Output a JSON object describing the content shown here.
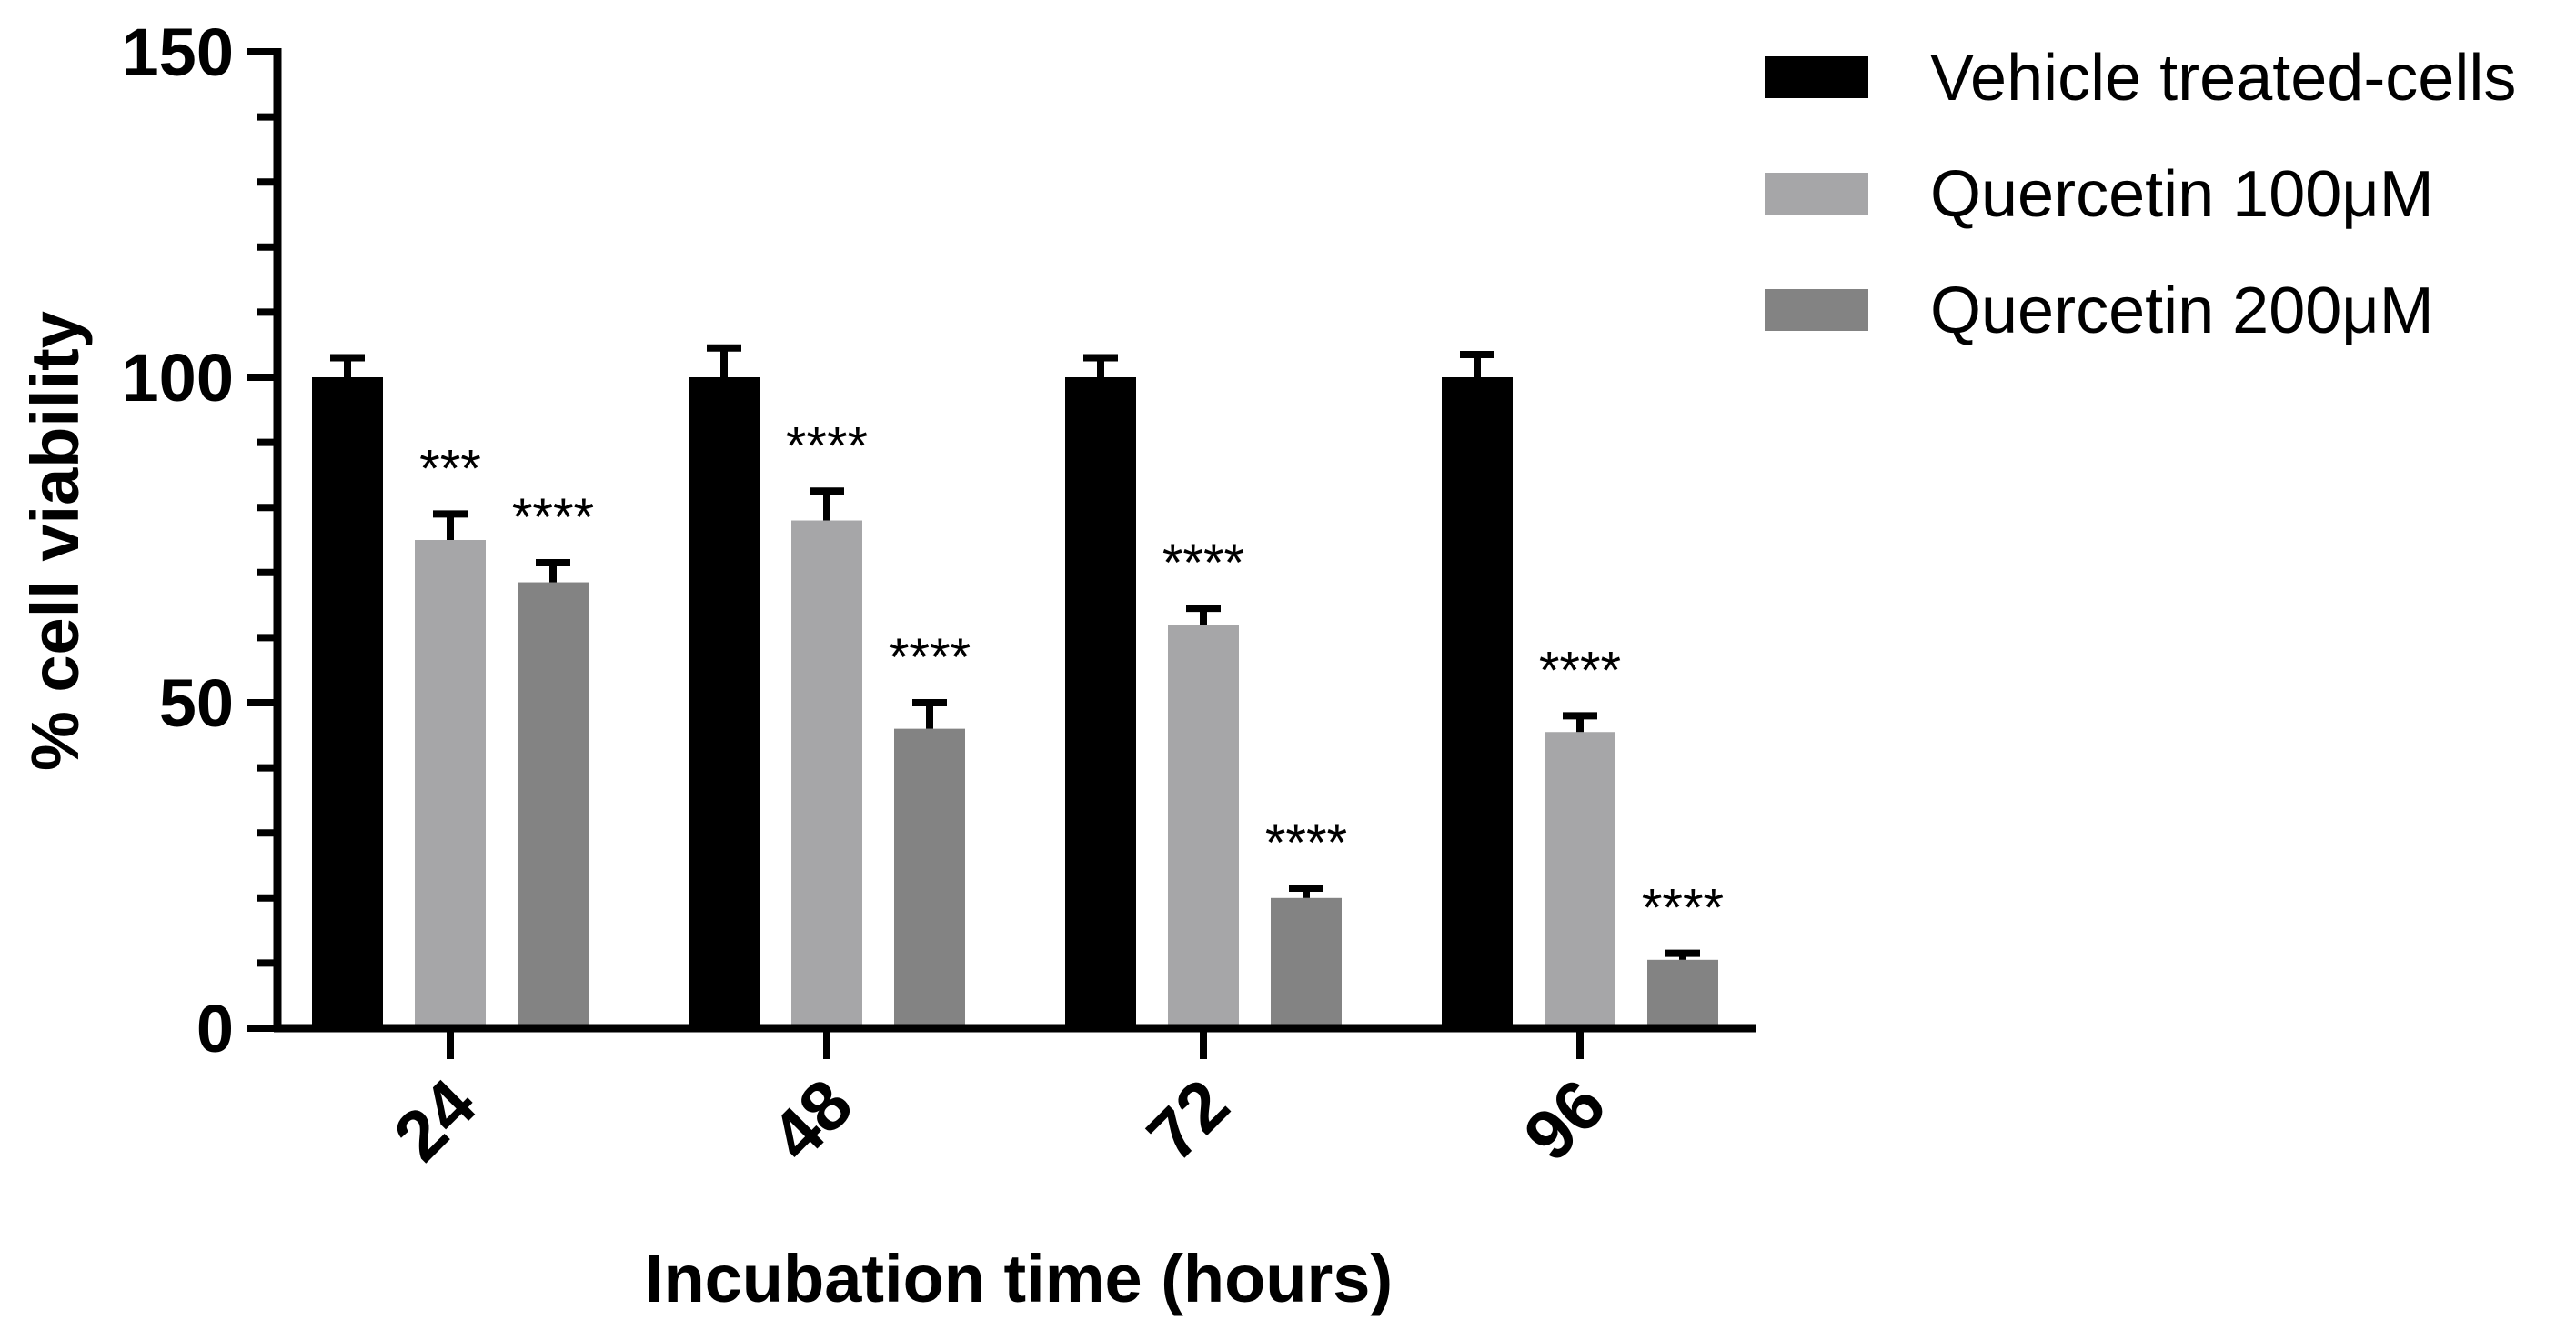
{
  "chart_data": {
    "type": "bar",
    "title": "",
    "xlabel": "Incubation time (hours)",
    "ylabel": "% cell viability",
    "ylim": [
      0,
      150
    ],
    "yticks": [
      0,
      50,
      100,
      150
    ],
    "y_minor_step": 10,
    "categories": [
      "24",
      "48",
      "72",
      "96"
    ],
    "series": [
      {
        "name": "Vehicle treated-cells",
        "color": "#000000",
        "values": [
          100,
          100,
          100,
          100
        ],
        "errors": [
          3,
          4.5,
          3,
          3.5
        ],
        "significance": [
          "",
          "",
          "",
          ""
        ]
      },
      {
        "name": "Quercetin 100μM",
        "color": "#a6a6a8",
        "values": [
          75,
          78,
          62,
          45.5
        ],
        "errors": [
          4,
          4.5,
          2.5,
          2.5
        ],
        "significance": [
          "***",
          "****",
          "****",
          "****"
        ]
      },
      {
        "name": "Quercetin 200μM",
        "color": "#838383",
        "values": [
          68.5,
          46,
          20,
          10.5
        ],
        "errors": [
          3,
          4,
          1.5,
          1
        ],
        "significance": [
          "****",
          "****",
          "****",
          "****"
        ]
      }
    ],
    "legend_position": "top-right",
    "grid": false
  }
}
